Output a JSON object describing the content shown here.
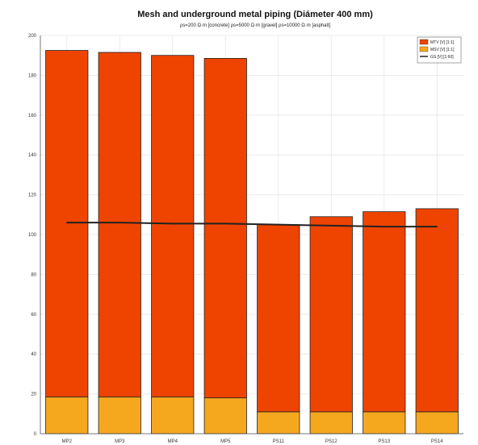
{
  "chart_data": {
    "type": "bar",
    "title": "Mesh and underground metal piping (Diámeter 400 mm)",
    "subtitle": "ρs=200 Ω·m [concrete] ρs=5000 Ω·m [gravel] ρs=10000 Ω·m [asphalt]",
    "xlabel": "",
    "ylabel": "",
    "categories": [
      "MP2",
      "MP3",
      "MP4",
      "MP5",
      "PS11",
      "PS12",
      "PS13",
      "PS14"
    ],
    "ylim": [
      0,
      200
    ],
    "yticks": [
      0,
      20,
      40,
      60,
      80,
      100,
      120,
      140,
      160,
      180,
      200
    ],
    "grid": true,
    "legend_position": "top-right",
    "series": [
      {
        "name": "MTV [V] [1:1]",
        "kind": "bar-stacked",
        "color": "#ee4400",
        "values": [
          174,
          173,
          171.5,
          170.5,
          94,
          98,
          100.5,
          102
        ]
      },
      {
        "name": "MSV [V] [1:1]",
        "kind": "bar-stacked",
        "color": "#f5a81e",
        "values": [
          18.5,
          18.5,
          18.5,
          18,
          11,
          11,
          11,
          11
        ]
      },
      {
        "name": "GS [V] [1:60]",
        "kind": "line",
        "color": "#222222",
        "values": [
          106,
          106,
          105.5,
          105.5,
          105,
          104.5,
          104,
          104
        ]
      }
    ]
  }
}
